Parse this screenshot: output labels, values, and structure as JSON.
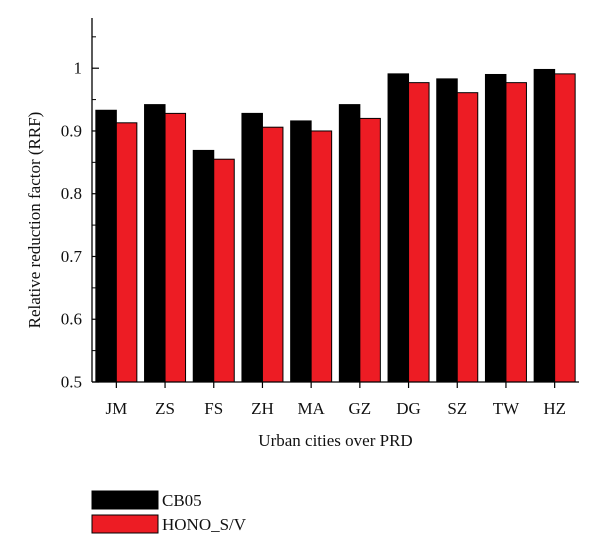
{
  "chart_data": {
    "type": "bar",
    "title": "",
    "xlabel": "Urban cities over PRD",
    "ylabel": "Relative reduction factor (RRF)",
    "ylim": [
      0.5,
      1.08
    ],
    "yticks": [
      0.5,
      0.6,
      0.7,
      0.8,
      0.9,
      1
    ],
    "ytick_labels": [
      "0.5",
      "0.6",
      "0.7",
      "0.8",
      "0.9",
      "1"
    ],
    "categories": [
      "JM",
      "ZS",
      "FS",
      "ZH",
      "MA",
      "GZ",
      "DG",
      "SZ",
      "TW",
      "HZ"
    ],
    "series": [
      {
        "name": "CB05",
        "color": "#000000",
        "values": [
          0.933,
          0.942,
          0.869,
          0.928,
          0.916,
          0.942,
          0.991,
          0.983,
          0.99,
          0.998
        ]
      },
      {
        "name": "HONO_S/V",
        "color": "#ed1c24",
        "values": [
          0.913,
          0.928,
          0.855,
          0.906,
          0.9,
          0.92,
          0.977,
          0.961,
          0.977,
          0.991
        ]
      }
    ],
    "grid": false,
    "legend_position": "bottom-left"
  }
}
